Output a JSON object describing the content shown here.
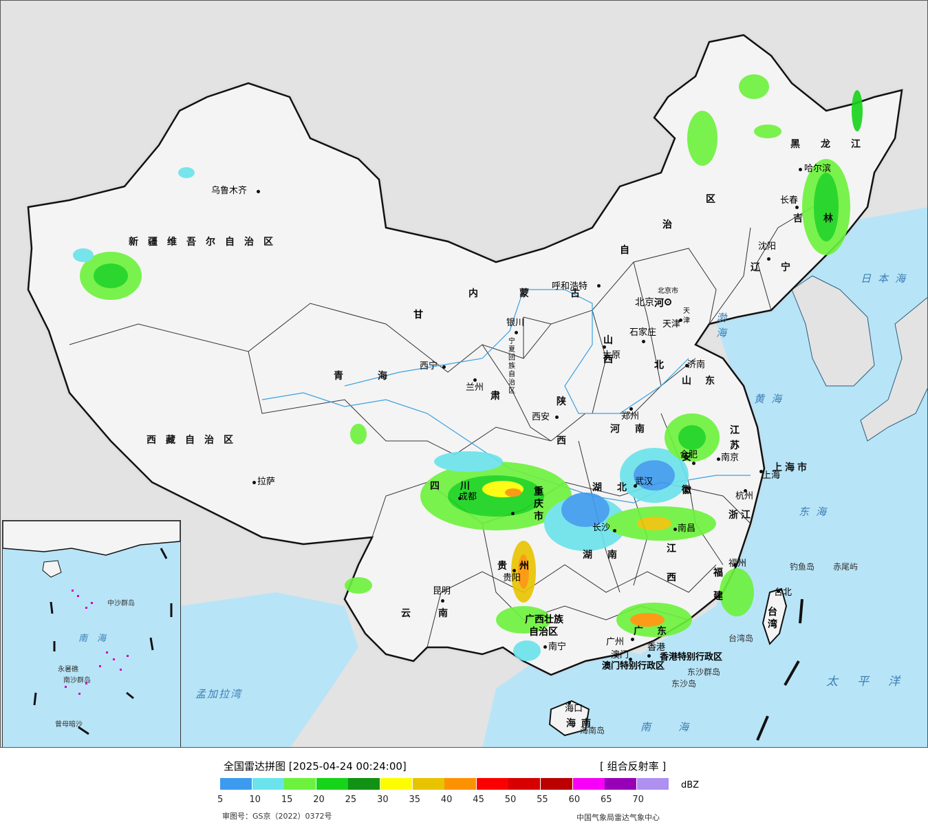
{
  "title": "全国雷达拼图 [2025-04-24 00:24:00]",
  "product": "[ 组合反射率 ]",
  "unit": "dBZ",
  "review_no": "审图号：GS京（2022）0372号",
  "source": "中国气象局雷达气象中心",
  "scale": {
    "colors": [
      "#3d9bef",
      "#6ae3ec",
      "#6cf23c",
      "#16d419",
      "#129214",
      "#fdfd00",
      "#e8c400",
      "#fd9200",
      "#fc0000",
      "#d60000",
      "#bb0000",
      "#f800f8",
      "#9800b8",
      "#ad90f0"
    ],
    "ticks": [
      "5",
      "10",
      "15",
      "20",
      "25",
      "30",
      "35",
      "40",
      "45",
      "50",
      "55",
      "60",
      "65",
      "70"
    ]
  },
  "provinces": {
    "xinjiang": "新疆维吾尔自治区",
    "xizang": "西藏自治区",
    "qinghai": "青海",
    "gansu": "甘",
    "gansu2": "肃",
    "neimenggu": "内蒙古",
    "neimenggu2": "自",
    "neimenggu3": "治",
    "neimenggu4": "区",
    "heilongjiang": "黑龙江",
    "jilin": "吉林",
    "liaoning": "辽宁",
    "hebei": "河北",
    "shanxi": "山西",
    "shaanxi": "陕西",
    "shandong": "山东",
    "henan": "河南",
    "hubei": "湖北",
    "hunan": "湖南",
    "sichuan": "四川",
    "chongqing": "重庆市",
    "guizhou": "贵州",
    "yunnan": "云南",
    "guangxi1": "广西壮族",
    "guangxi2": "自治区",
    "guangdong": "广东",
    "jiangxi": "江西",
    "fujian": "福建",
    "zhejiang": "浙江",
    "anhui": "安徽",
    "jiangsu": "江苏",
    "shanghai": "上海市",
    "hainan": "海南",
    "taiwan": "台湾",
    "ningxia": "宁夏回族自治区",
    "beijing": "北京市",
    "tianjin": "天津",
    "hongkong": "香港特别行政区",
    "macau": "澳门特别行政区"
  },
  "cities": {
    "urumqi": "乌鲁木齐",
    "lhasa": "拉萨",
    "xining": "西宁",
    "lanzhou": "兰州",
    "yinchuan": "银川",
    "hohhot": "呼和浩特",
    "beijing": "北京",
    "tianjin": "天津",
    "shijiazhuang": "石家庄",
    "taiyuan": "太原",
    "jinan": "济南",
    "zhengzhou": "郑州",
    "xian": "西安",
    "chengdu": "成都",
    "chongqing": "重庆",
    "guiyang": "贵阳",
    "kunming": "昆明",
    "nanning": "南宁",
    "guangzhou": "广州",
    "hongkong": "香港",
    "macau": "澳门",
    "haikou": "海口",
    "wuhan": "武汉",
    "changsha": "长沙",
    "nanchang": "南昌",
    "hefei": "合肥",
    "nanjing": "南京",
    "shanghai": "上海",
    "hangzhou": "杭州",
    "fuzhou": "福州",
    "taipei": "台北",
    "shenyang": "沈阳",
    "changchun": "长春",
    "harbin": "哈尔滨"
  },
  "seas": {
    "japan": "日本海",
    "bohai": "渤海",
    "yellow": "黄海",
    "east": "东海",
    "south": "南海",
    "pacific": "太平洋",
    "bengal": "孟加拉湾"
  },
  "islands": {
    "diaoyu": "钓鱼岛",
    "chiwei": "赤尾屿",
    "dongsha_islands": "东沙群岛",
    "dongsha": "东沙岛",
    "taiwan_island": "台湾岛",
    "hainan_island": "海南岛"
  },
  "inset": {
    "south_sea": "南海",
    "zhongsha": "中沙群岛",
    "nansha": "南沙群岛",
    "zengmu": "曾母暗沙",
    "yongshu": "永暑礁"
  }
}
